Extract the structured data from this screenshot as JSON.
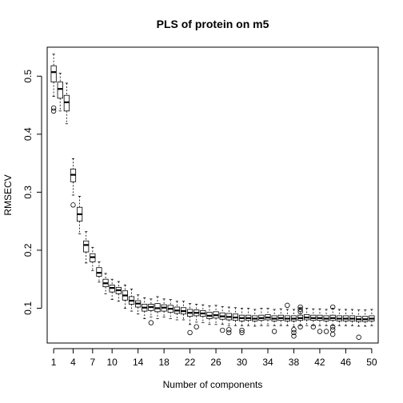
{
  "chart_data": {
    "type": "boxplot",
    "title": "PLS of protein on m5",
    "xlabel": "Number of components",
    "ylabel": "RMSECV",
    "x_range": [
      0,
      51
    ],
    "ylim": [
      0.04,
      0.55
    ],
    "x_ticks": [
      1,
      4,
      7,
      10,
      14,
      18,
      22,
      26,
      30,
      34,
      38,
      42,
      46,
      50
    ],
    "y_ticks": [
      0.1,
      0.2,
      0.3,
      0.4,
      0.5
    ],
    "grid": false,
    "boxes": [
      {
        "x": 1,
        "min": 0.465,
        "q1": 0.49,
        "median": 0.507,
        "q3": 0.518,
        "max": 0.538,
        "outliers": [
          0.44,
          0.445
        ]
      },
      {
        "x": 2,
        "min": 0.44,
        "q1": 0.462,
        "median": 0.478,
        "q3": 0.49,
        "max": 0.505,
        "outliers": []
      },
      {
        "x": 3,
        "min": 0.418,
        "q1": 0.44,
        "median": 0.455,
        "q3": 0.467,
        "max": 0.488,
        "outliers": []
      },
      {
        "x": 4,
        "min": 0.295,
        "q1": 0.318,
        "median": 0.33,
        "q3": 0.34,
        "max": 0.358,
        "outliers": [
          0.278
        ]
      },
      {
        "x": 5,
        "min": 0.228,
        "q1": 0.25,
        "median": 0.262,
        "q3": 0.274,
        "max": 0.293,
        "outliers": []
      },
      {
        "x": 6,
        "min": 0.178,
        "q1": 0.197,
        "median": 0.209,
        "q3": 0.216,
        "max": 0.232,
        "outliers": []
      },
      {
        "x": 7,
        "min": 0.165,
        "q1": 0.18,
        "median": 0.188,
        "q3": 0.194,
        "max": 0.205,
        "outliers": []
      },
      {
        "x": 8,
        "min": 0.145,
        "q1": 0.155,
        "median": 0.161,
        "q3": 0.17,
        "max": 0.18,
        "outliers": []
      },
      {
        "x": 9,
        "min": 0.125,
        "q1": 0.137,
        "median": 0.143,
        "q3": 0.15,
        "max": 0.16,
        "outliers": []
      },
      {
        "x": 10,
        "min": 0.115,
        "q1": 0.128,
        "median": 0.135,
        "q3": 0.14,
        "max": 0.15,
        "outliers": []
      },
      {
        "x": 11,
        "min": 0.112,
        "q1": 0.125,
        "median": 0.131,
        "q3": 0.136,
        "max": 0.146,
        "outliers": []
      },
      {
        "x": 12,
        "min": 0.1,
        "q1": 0.114,
        "median": 0.122,
        "q3": 0.13,
        "max": 0.14,
        "outliers": []
      },
      {
        "x": 13,
        "min": 0.095,
        "q1": 0.107,
        "median": 0.113,
        "q3": 0.12,
        "max": 0.133,
        "outliers": []
      },
      {
        "x": 14,
        "min": 0.09,
        "q1": 0.102,
        "median": 0.108,
        "q3": 0.113,
        "max": 0.123,
        "outliers": []
      },
      {
        "x": 15,
        "min": 0.082,
        "q1": 0.095,
        "median": 0.101,
        "q3": 0.107,
        "max": 0.118,
        "outliers": []
      },
      {
        "x": 16,
        "min": 0.085,
        "q1": 0.096,
        "median": 0.102,
        "q3": 0.107,
        "max": 0.116,
        "outliers": [
          0.075
        ]
      },
      {
        "x": 17,
        "min": 0.082,
        "q1": 0.094,
        "median": 0.1,
        "q3": 0.108,
        "max": 0.12,
        "outliers": []
      },
      {
        "x": 18,
        "min": 0.085,
        "q1": 0.095,
        "median": 0.101,
        "q3": 0.106,
        "max": 0.116,
        "outliers": []
      },
      {
        "x": 19,
        "min": 0.082,
        "q1": 0.093,
        "median": 0.099,
        "q3": 0.105,
        "max": 0.115,
        "outliers": []
      },
      {
        "x": 20,
        "min": 0.08,
        "q1": 0.091,
        "median": 0.096,
        "q3": 0.102,
        "max": 0.112,
        "outliers": []
      },
      {
        "x": 21,
        "min": 0.08,
        "q1": 0.09,
        "median": 0.095,
        "q3": 0.101,
        "max": 0.112,
        "outliers": []
      },
      {
        "x": 22,
        "min": 0.072,
        "q1": 0.086,
        "median": 0.092,
        "q3": 0.098,
        "max": 0.108,
        "outliers": [
          0.058
        ]
      },
      {
        "x": 23,
        "min": 0.076,
        "q1": 0.087,
        "median": 0.092,
        "q3": 0.097,
        "max": 0.107,
        "outliers": [
          0.068
        ]
      },
      {
        "x": 24,
        "min": 0.075,
        "q1": 0.086,
        "median": 0.091,
        "q3": 0.096,
        "max": 0.106,
        "outliers": []
      },
      {
        "x": 25,
        "min": 0.072,
        "q1": 0.082,
        "median": 0.087,
        "q3": 0.093,
        "max": 0.104,
        "outliers": []
      },
      {
        "x": 26,
        "min": 0.072,
        "q1": 0.083,
        "median": 0.088,
        "q3": 0.094,
        "max": 0.105,
        "outliers": []
      },
      {
        "x": 27,
        "min": 0.072,
        "q1": 0.081,
        "median": 0.086,
        "q3": 0.092,
        "max": 0.103,
        "outliers": [
          0.062
        ]
      },
      {
        "x": 28,
        "min": 0.07,
        "q1": 0.08,
        "median": 0.085,
        "q3": 0.091,
        "max": 0.102,
        "outliers": [
          0.058,
          0.063
        ]
      },
      {
        "x": 29,
        "min": 0.07,
        "q1": 0.079,
        "median": 0.084,
        "q3": 0.09,
        "max": 0.101,
        "outliers": []
      },
      {
        "x": 30,
        "min": 0.07,
        "q1": 0.078,
        "median": 0.083,
        "q3": 0.088,
        "max": 0.1,
        "outliers": [
          0.058,
          0.062
        ]
      },
      {
        "x": 31,
        "min": 0.07,
        "q1": 0.079,
        "median": 0.083,
        "q3": 0.088,
        "max": 0.1,
        "outliers": []
      },
      {
        "x": 32,
        "min": 0.069,
        "q1": 0.078,
        "median": 0.082,
        "q3": 0.087,
        "max": 0.098,
        "outliers": []
      },
      {
        "x": 33,
        "min": 0.07,
        "q1": 0.079,
        "median": 0.083,
        "q3": 0.088,
        "max": 0.1,
        "outliers": []
      },
      {
        "x": 34,
        "min": 0.07,
        "q1": 0.08,
        "median": 0.084,
        "q3": 0.089,
        "max": 0.1,
        "outliers": []
      },
      {
        "x": 35,
        "min": 0.07,
        "q1": 0.078,
        "median": 0.082,
        "q3": 0.087,
        "max": 0.098,
        "outliers": [
          0.06
        ]
      },
      {
        "x": 36,
        "min": 0.07,
        "q1": 0.079,
        "median": 0.083,
        "q3": 0.088,
        "max": 0.099,
        "outliers": []
      },
      {
        "x": 37,
        "min": 0.07,
        "q1": 0.078,
        "median": 0.082,
        "q3": 0.087,
        "max": 0.098,
        "outliers": [
          0.105
        ]
      },
      {
        "x": 38,
        "min": 0.068,
        "q1": 0.078,
        "median": 0.082,
        "q3": 0.087,
        "max": 0.098,
        "outliers": [
          0.052,
          0.058,
          0.063
        ]
      },
      {
        "x": 39,
        "min": 0.07,
        "q1": 0.079,
        "median": 0.083,
        "q3": 0.088,
        "max": 0.1,
        "outliers": [
          0.068,
          0.094,
          0.098,
          0.102
        ]
      },
      {
        "x": 40,
        "min": 0.07,
        "q1": 0.08,
        "median": 0.084,
        "q3": 0.089,
        "max": 0.1,
        "outliers": []
      },
      {
        "x": 41,
        "min": 0.07,
        "q1": 0.079,
        "median": 0.083,
        "q3": 0.088,
        "max": 0.099,
        "outliers": [
          0.068
        ]
      },
      {
        "x": 42,
        "min": 0.07,
        "q1": 0.079,
        "median": 0.083,
        "q3": 0.088,
        "max": 0.099,
        "outliers": [
          0.06
        ]
      },
      {
        "x": 43,
        "min": 0.07,
        "q1": 0.078,
        "median": 0.082,
        "q3": 0.087,
        "max": 0.098,
        "outliers": [
          0.06
        ]
      },
      {
        "x": 44,
        "min": 0.07,
        "q1": 0.079,
        "median": 0.083,
        "q3": 0.088,
        "max": 0.1,
        "outliers": [
          0.055,
          0.063,
          0.068,
          0.102
        ]
      },
      {
        "x": 45,
        "min": 0.07,
        "q1": 0.078,
        "median": 0.082,
        "q3": 0.087,
        "max": 0.098,
        "outliers": []
      },
      {
        "x": 46,
        "min": 0.07,
        "q1": 0.078,
        "median": 0.082,
        "q3": 0.087,
        "max": 0.098,
        "outliers": []
      },
      {
        "x": 47,
        "min": 0.07,
        "q1": 0.078,
        "median": 0.082,
        "q3": 0.087,
        "max": 0.098,
        "outliers": []
      },
      {
        "x": 48,
        "min": 0.069,
        "q1": 0.077,
        "median": 0.081,
        "q3": 0.086,
        "max": 0.097,
        "outliers": [
          0.05
        ]
      },
      {
        "x": 49,
        "min": 0.069,
        "q1": 0.077,
        "median": 0.081,
        "q3": 0.086,
        "max": 0.097,
        "outliers": []
      },
      {
        "x": 50,
        "min": 0.07,
        "q1": 0.078,
        "median": 0.082,
        "q3": 0.087,
        "max": 0.098,
        "outliers": []
      }
    ]
  }
}
